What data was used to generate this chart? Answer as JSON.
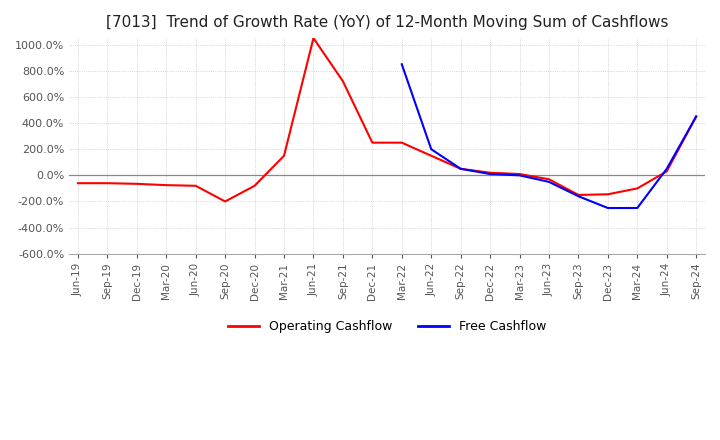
{
  "title": "[7013]  Trend of Growth Rate (YoY) of 12-Month Moving Sum of Cashflows",
  "title_fontsize": 11,
  "ylim": [
    -600,
    1050
  ],
  "yticks": [
    -600,
    -400,
    -200,
    0,
    200,
    400,
    600,
    800,
    1000
  ],
  "legend_labels": [
    "Operating Cashflow",
    "Free Cashflow"
  ],
  "line_colors": [
    "#ff0000",
    "#0000ff"
  ],
  "background_color": "#ffffff",
  "dates": [
    "Jun-19",
    "Sep-19",
    "Dec-19",
    "Mar-20",
    "Jun-20",
    "Sep-20",
    "Dec-20",
    "Mar-21",
    "Jun-21",
    "Sep-21",
    "Dec-21",
    "Mar-22",
    "Jun-22",
    "Sep-22",
    "Dec-22",
    "Mar-23",
    "Jun-23",
    "Sep-23",
    "Dec-23",
    "Mar-24",
    "Jun-24",
    "Sep-24"
  ],
  "operating_cashflow": [
    -60,
    -60,
    -65,
    -75,
    -80,
    -200,
    -80,
    150,
    1050,
    720,
    250,
    250,
    150,
    50,
    20,
    10,
    -30,
    -150,
    -145,
    -100,
    30,
    450
  ],
  "free_cashflow": [
    null,
    null,
    null,
    null,
    null,
    null,
    null,
    null,
    null,
    null,
    null,
    850,
    200,
    50,
    10,
    0,
    -50,
    -160,
    -250,
    -250,
    50,
    450
  ]
}
